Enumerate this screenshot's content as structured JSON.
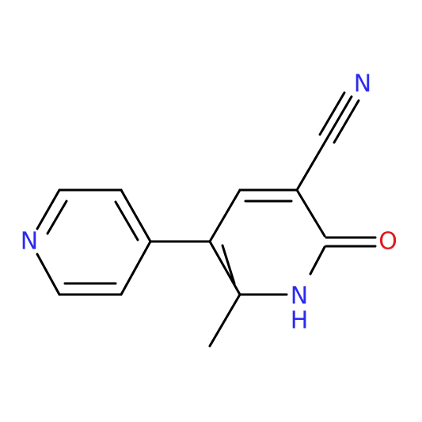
{
  "atoms": [
    {
      "label": "N"
    },
    {
      "label": "O"
    },
    {
      "label": "N"
    },
    {
      "label": "H"
    },
    {
      "label": "N"
    }
  ]
}
